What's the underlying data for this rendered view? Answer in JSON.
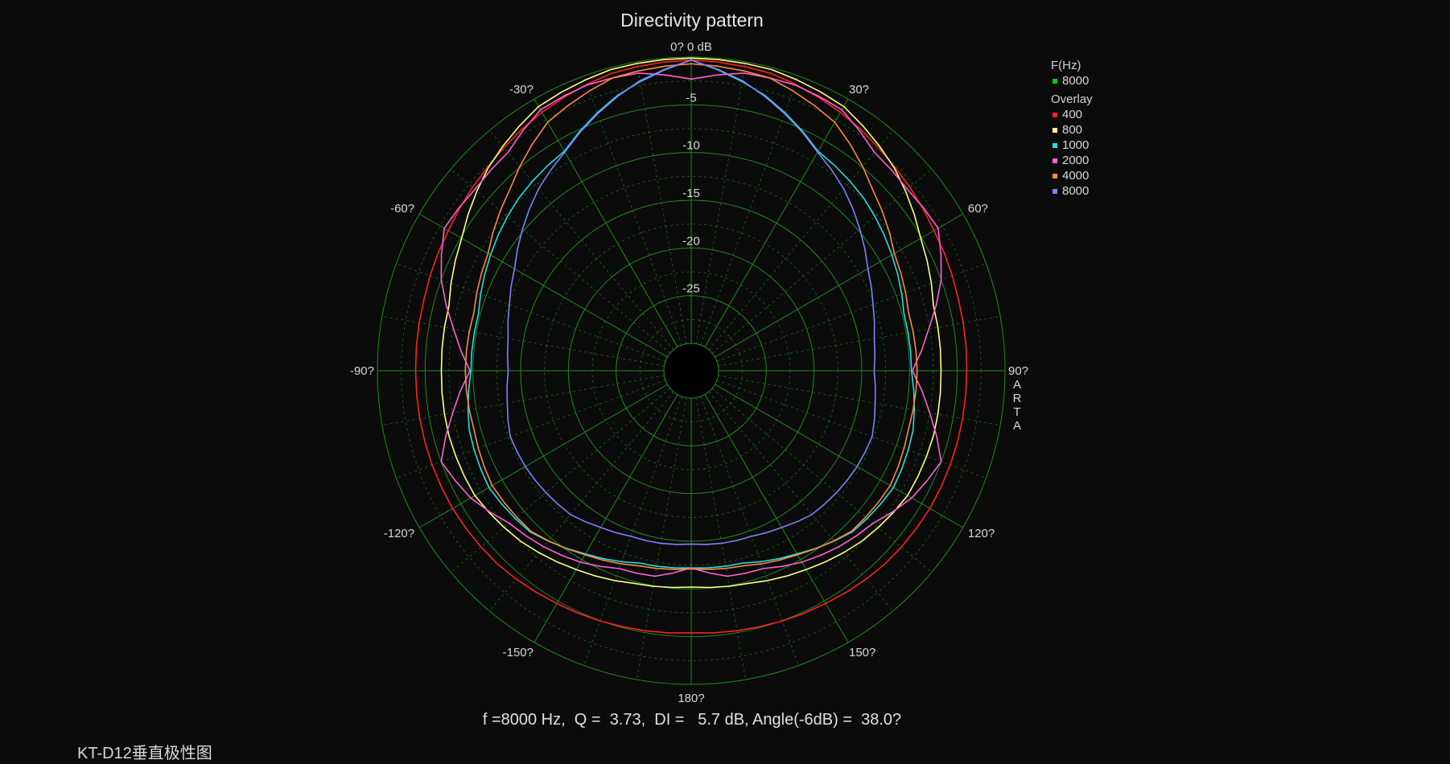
{
  "title": "Directivity pattern",
  "legend": {
    "group1_title": "F(Hz)",
    "group1_items": [
      {
        "label": "8000",
        "color": "#00cc00"
      }
    ],
    "group2_title": "Overlay",
    "group2_items": [
      {
        "label": "400",
        "color": "#ff2020"
      },
      {
        "label": "800",
        "color": "#ffff80"
      },
      {
        "label": "1000",
        "color": "#20e0e0"
      },
      {
        "label": "2000",
        "color": "#ff60d0"
      },
      {
        "label": "4000",
        "color": "#ff8840"
      },
      {
        "label": "8000",
        "color": "#8080ff"
      }
    ]
  },
  "side_label": [
    "A",
    "R",
    "T",
    "A"
  ],
  "footer": "f =8000 Hz,  Q =  3.73,  DI =   5.7 dB, Angle(-6dB) =  38.0?",
  "caption": "KT-D12垂直极性图",
  "chart_data": {
    "type": "polar",
    "title": "Directivity pattern",
    "radial_unit": "dB",
    "radial_range": [
      -30,
      0
    ],
    "radial_ticks": [
      {
        "value": -5,
        "label": "-5"
      },
      {
        "value": -10,
        "label": "-10"
      },
      {
        "value": -15,
        "label": "-15"
      },
      {
        "value": -20,
        "label": "-20"
      },
      {
        "value": -25,
        "label": "-25"
      }
    ],
    "angle_labels": [
      {
        "angle": 0,
        "label": "0? 0 dB"
      },
      {
        "angle": 30,
        "label": "30?"
      },
      {
        "angle": 60,
        "label": "60?"
      },
      {
        "angle": 90,
        "label": "90?"
      },
      {
        "angle": 120,
        "label": "120?"
      },
      {
        "angle": 150,
        "label": "150?"
      },
      {
        "angle": 180,
        "label": "180?"
      },
      {
        "angle": -150,
        "label": "-150?"
      },
      {
        "angle": -120,
        "label": "-120?"
      },
      {
        "angle": -90,
        "label": "-90?"
      },
      {
        "angle": -60,
        "label": "-60?"
      },
      {
        "angle": -30,
        "label": "-30?"
      }
    ],
    "grid": true,
    "symmetric": true,
    "series": [
      {
        "name": "400",
        "color": "#ff2020",
        "angles": [
          0,
          15,
          30,
          45,
          60,
          75,
          90,
          105,
          120,
          135,
          150,
          165,
          180
        ],
        "values": [
          -0.3,
          -0.6,
          -1.6,
          -2.7,
          -3.5,
          -3.9,
          -4.0,
          -4.0,
          -4.0,
          -4.2,
          -4.7,
          -5.1,
          -5.4
        ]
      },
      {
        "name": "800",
        "color": "#ffff80",
        "angles": [
          0,
          15,
          30,
          45,
          60,
          75,
          90,
          105,
          120,
          135,
          150,
          165,
          180
        ],
        "values": [
          -0.1,
          -0.2,
          -0.9,
          -2.8,
          -5.1,
          -6.6,
          -6.7,
          -6.6,
          -6.7,
          -7.6,
          -8.8,
          -9.8,
          -10.2
        ]
      },
      {
        "name": "1000",
        "color": "#20e0e0",
        "angles": [
          0,
          15,
          30,
          45,
          60,
          75,
          90,
          105,
          120,
          135,
          150,
          165,
          180
        ],
        "values": [
          -0.3,
          -3.0,
          -6.3,
          -7.3,
          -8.6,
          -9.8,
          -9.8,
          -8.8,
          -8.4,
          -9.0,
          -10.7,
          -12.0,
          -12.2
        ]
      },
      {
        "name": "2000",
        "color": "#ff60d0",
        "angles": [
          0,
          10,
          20,
          30,
          40,
          50,
          60,
          70,
          80,
          90,
          100,
          110,
          120,
          130,
          140,
          150,
          160,
          170,
          180
        ],
        "values": [
          -2.3,
          -1.2,
          -1.0,
          -1.3,
          -3.0,
          -3.3,
          -3.0,
          -5.0,
          -7.6,
          -9.7,
          -7.5,
          -5.0,
          -6.2,
          -8.0,
          -8.8,
          -9.7,
          -10.8,
          -11.0,
          -12.2
        ]
      },
      {
        "name": "4000",
        "color": "#ff8840",
        "angles": [
          0,
          15,
          30,
          45,
          60,
          75,
          90,
          105,
          120,
          135,
          150,
          165,
          180
        ],
        "values": [
          -0.7,
          -1.1,
          -2.8,
          -6.0,
          -8.3,
          -9.3,
          -9.2,
          -9.3,
          -8.8,
          -9.1,
          -10.6,
          -11.7,
          -12.1
        ]
      },
      {
        "name": "8000",
        "color": "#8080ff",
        "angles": [
          0,
          10,
          20,
          30,
          40,
          50,
          60,
          70,
          80,
          90,
          100,
          110,
          120,
          130,
          140,
          150,
          160,
          170,
          180
        ],
        "values": [
          -0.3,
          -2.0,
          -4.2,
          -6.4,
          -8.0,
          -9.8,
          -11.5,
          -12.6,
          -13.4,
          -13.7,
          -13.3,
          -12.7,
          -12.8,
          -13.0,
          -13.2,
          -13.9,
          -14.4,
          -14.5,
          -14.7
        ]
      }
    ]
  }
}
